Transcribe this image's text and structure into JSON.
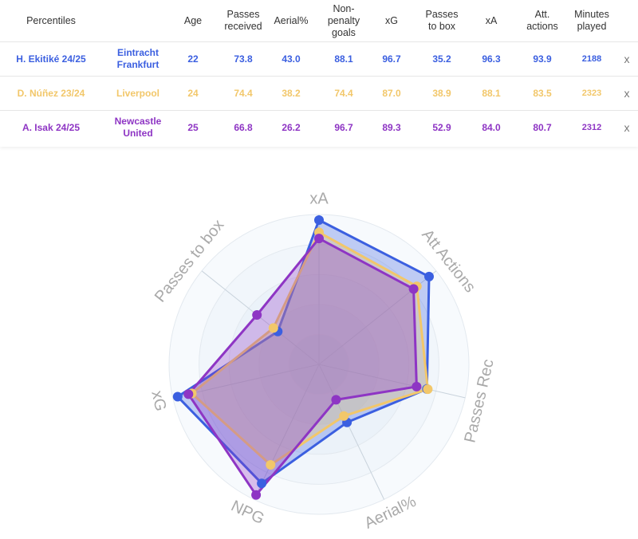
{
  "table": {
    "headers": {
      "name": "Percentiles",
      "age": "Age",
      "passes_received": "Passes\nreceived",
      "aerial": "Aerial%",
      "npg": "Non-\npenalty\ngoals",
      "xg": "xG",
      "passes_box": "Passes\nto box",
      "xa": "xA",
      "att_actions": "Att.\nactions",
      "minutes": "Minutes\nplayed"
    },
    "remove_label": "x",
    "rows": [
      {
        "player": "H. Ekitiké 24/25",
        "team": "Eintracht\nFrankfurt",
        "age": "22",
        "passes_received": "73.8",
        "aerial": "43.0",
        "npg": "88.1",
        "xg": "96.7",
        "passes_box": "35.2",
        "xa": "96.3",
        "att_actions": "93.9",
        "minutes": "2188",
        "color": "#3b5fe0"
      },
      {
        "player": "D. Núñez 23/24",
        "team": "Liverpool",
        "age": "24",
        "passes_received": "74.4",
        "aerial": "38.2",
        "npg": "74.4",
        "xg": "87.0",
        "passes_box": "38.9",
        "xa": "88.1",
        "att_actions": "83.5",
        "minutes": "2323",
        "color": "#f2c76a"
      },
      {
        "player": "A. Isak 24/25",
        "team": "Newcastle\nUnited",
        "age": "25",
        "passes_received": "66.8",
        "aerial": "26.2",
        "npg": "96.7",
        "xg": "89.3",
        "passes_box": "52.9",
        "xa": "84.0",
        "att_actions": "80.7",
        "minutes": "2312",
        "color": "#8e35c4"
      }
    ]
  },
  "chart_data": {
    "type": "radar",
    "axes": [
      "xA",
      "Att Actions",
      "Passes Rec",
      "Aerial%",
      "NPG",
      "xG",
      "Passes to box"
    ],
    "range": [
      0,
      100
    ],
    "series": [
      {
        "name": "H. Ekitiké 24/25",
        "values": [
          96.3,
          93.9,
          73.8,
          43.0,
          88.1,
          96.7,
          35.2
        ],
        "color": "#3b5fe0"
      },
      {
        "name": "D. Núñez 23/24",
        "values": [
          88.1,
          83.5,
          74.4,
          38.2,
          74.4,
          87.0,
          38.9
        ],
        "color": "#f2c76a"
      },
      {
        "name": "A. Isak 24/25",
        "values": [
          84.0,
          80.7,
          66.8,
          26.2,
          96.7,
          89.3,
          52.9
        ],
        "color": "#8e35c4"
      }
    ]
  }
}
